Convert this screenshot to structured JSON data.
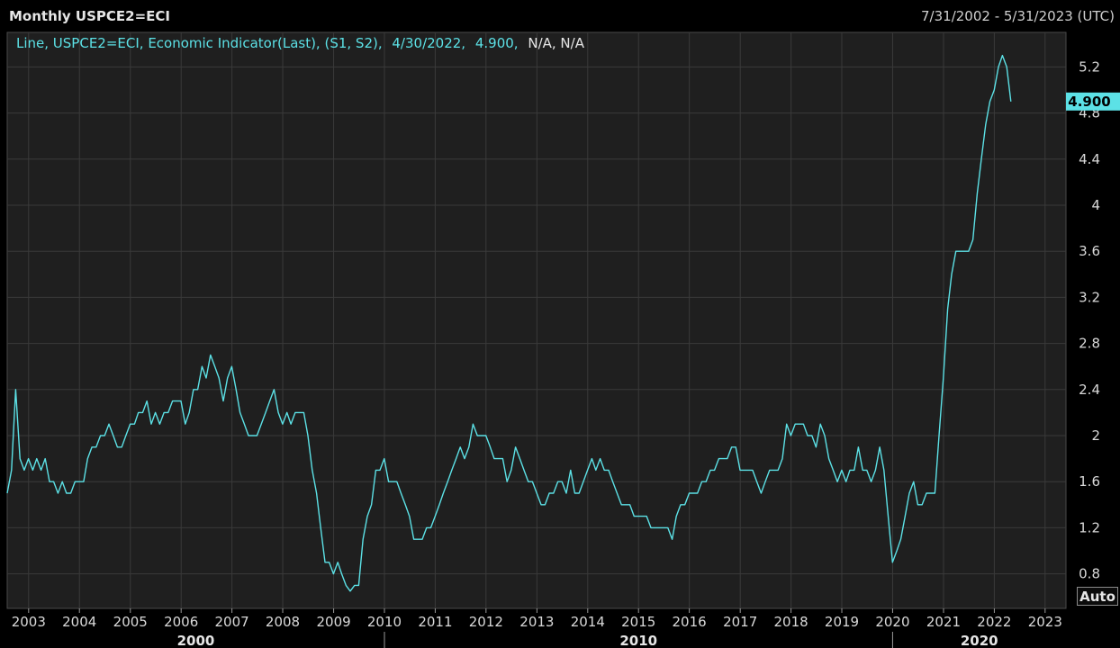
{
  "header": {
    "title": "Monthly USPCE2=ECI",
    "date_range": "7/31/2002 - 5/31/2023 (UTC)"
  },
  "legend": {
    "prefix": "Line, USPCE2=ECI, Economic Indicator(Last), (S1, S2),",
    "date": "4/30/2022,",
    "value": "4.900,",
    "na": "N/A, N/A"
  },
  "last_value_badge": "4.900",
  "auto_button": "Auto",
  "colors": {
    "series": "#5ce1e6",
    "background": "#1f1f1f",
    "grid": "#3a3a3a",
    "badge": "#5ce1e6"
  },
  "chart_data": {
    "type": "line",
    "title": "Monthly USPCE2=ECI",
    "xlabel": "",
    "ylabel": "",
    "ylim": [
      0.5,
      5.5
    ],
    "xlim": [
      "2002-07-31",
      "2023-05-31"
    ],
    "y_ticks": [
      "0.8",
      "1.2",
      "1.6",
      "2",
      "2.4",
      "2.8",
      "3.2",
      "3.6",
      "4",
      "4.4",
      "4.8",
      "5.2"
    ],
    "x_ticks": [
      "2003",
      "2004",
      "2005",
      "2006",
      "2007",
      "2008",
      "2009",
      "2010",
      "2011",
      "2012",
      "2013",
      "2014",
      "2015",
      "2016",
      "2017",
      "2018",
      "2019",
      "2020",
      "2021",
      "2022",
      "2023"
    ],
    "decade_labels": [
      "2000",
      "2010",
      "2020"
    ],
    "grid": true,
    "legend_position": "top-left",
    "series": [
      {
        "name": "USPCE2=ECI",
        "points": [
          [
            "2002-07-31",
            1.5
          ],
          [
            "2002-08-31",
            1.7
          ],
          [
            "2002-09-30",
            2.4
          ],
          [
            "2002-10-31",
            1.8
          ],
          [
            "2002-11-30",
            1.7
          ],
          [
            "2002-12-31",
            1.8
          ],
          [
            "2003-01-31",
            1.7
          ],
          [
            "2003-02-28",
            1.8
          ],
          [
            "2003-03-31",
            1.7
          ],
          [
            "2003-04-30",
            1.8
          ],
          [
            "2003-05-31",
            1.6
          ],
          [
            "2003-06-30",
            1.6
          ],
          [
            "2003-07-31",
            1.5
          ],
          [
            "2003-08-31",
            1.6
          ],
          [
            "2003-09-30",
            1.5
          ],
          [
            "2003-10-31",
            1.5
          ],
          [
            "2003-11-30",
            1.6
          ],
          [
            "2003-12-31",
            1.6
          ],
          [
            "2004-01-31",
            1.6
          ],
          [
            "2004-02-29",
            1.8
          ],
          [
            "2004-03-31",
            1.9
          ],
          [
            "2004-04-30",
            1.9
          ],
          [
            "2004-05-31",
            2.0
          ],
          [
            "2004-06-30",
            2.0
          ],
          [
            "2004-07-31",
            2.1
          ],
          [
            "2004-08-31",
            2.0
          ],
          [
            "2004-09-30",
            1.9
          ],
          [
            "2004-10-31",
            1.9
          ],
          [
            "2004-11-30",
            2.0
          ],
          [
            "2004-12-31",
            2.1
          ],
          [
            "2005-01-31",
            2.1
          ],
          [
            "2005-02-28",
            2.2
          ],
          [
            "2005-03-31",
            2.2
          ],
          [
            "2005-04-30",
            2.3
          ],
          [
            "2005-05-31",
            2.1
          ],
          [
            "2005-06-30",
            2.2
          ],
          [
            "2005-07-31",
            2.1
          ],
          [
            "2005-08-31",
            2.2
          ],
          [
            "2005-09-30",
            2.2
          ],
          [
            "2005-10-31",
            2.3
          ],
          [
            "2005-11-30",
            2.3
          ],
          [
            "2005-12-31",
            2.3
          ],
          [
            "2006-01-31",
            2.1
          ],
          [
            "2006-02-28",
            2.2
          ],
          [
            "2006-03-31",
            2.4
          ],
          [
            "2006-04-30",
            2.4
          ],
          [
            "2006-05-31",
            2.6
          ],
          [
            "2006-06-30",
            2.5
          ],
          [
            "2006-07-31",
            2.7
          ],
          [
            "2006-08-31",
            2.6
          ],
          [
            "2006-09-30",
            2.5
          ],
          [
            "2006-10-31",
            2.3
          ],
          [
            "2006-11-30",
            2.5
          ],
          [
            "2006-12-31",
            2.6
          ],
          [
            "2007-01-31",
            2.4
          ],
          [
            "2007-02-28",
            2.2
          ],
          [
            "2007-03-31",
            2.1
          ],
          [
            "2007-04-30",
            2.0
          ],
          [
            "2007-05-31",
            2.0
          ],
          [
            "2007-06-30",
            2.0
          ],
          [
            "2007-07-31",
            2.1
          ],
          [
            "2007-08-31",
            2.2
          ],
          [
            "2007-09-30",
            2.3
          ],
          [
            "2007-10-31",
            2.4
          ],
          [
            "2007-11-30",
            2.2
          ],
          [
            "2007-12-31",
            2.1
          ],
          [
            "2008-01-31",
            2.2
          ],
          [
            "2008-02-29",
            2.1
          ],
          [
            "2008-03-31",
            2.2
          ],
          [
            "2008-04-30",
            2.2
          ],
          [
            "2008-05-31",
            2.2
          ],
          [
            "2008-06-30",
            2.0
          ],
          [
            "2008-07-31",
            1.7
          ],
          [
            "2008-08-31",
            1.5
          ],
          [
            "2008-09-30",
            1.2
          ],
          [
            "2008-10-31",
            0.9
          ],
          [
            "2008-11-30",
            0.9
          ],
          [
            "2008-12-31",
            0.8
          ],
          [
            "2009-01-31",
            0.9
          ],
          [
            "2009-02-28",
            0.8
          ],
          [
            "2009-03-31",
            0.7
          ],
          [
            "2009-04-30",
            0.65
          ],
          [
            "2009-05-31",
            0.7
          ],
          [
            "2009-06-30",
            0.7
          ],
          [
            "2009-07-31",
            1.1
          ],
          [
            "2009-08-31",
            1.3
          ],
          [
            "2009-09-30",
            1.4
          ],
          [
            "2009-10-31",
            1.7
          ],
          [
            "2009-11-30",
            1.7
          ],
          [
            "2009-12-31",
            1.8
          ],
          [
            "2010-01-31",
            1.6
          ],
          [
            "2010-02-28",
            1.6
          ],
          [
            "2010-03-31",
            1.6
          ],
          [
            "2010-04-30",
            1.5
          ],
          [
            "2010-05-31",
            1.4
          ],
          [
            "2010-06-30",
            1.3
          ],
          [
            "2010-07-31",
            1.1
          ],
          [
            "2010-08-31",
            1.1
          ],
          [
            "2010-09-30",
            1.1
          ],
          [
            "2010-10-31",
            1.2
          ],
          [
            "2010-11-30",
            1.2
          ],
          [
            "2010-12-31",
            1.3
          ],
          [
            "2011-01-31",
            1.4
          ],
          [
            "2011-02-28",
            1.5
          ],
          [
            "2011-03-31",
            1.6
          ],
          [
            "2011-04-30",
            1.7
          ],
          [
            "2011-05-31",
            1.8
          ],
          [
            "2011-06-30",
            1.9
          ],
          [
            "2011-07-31",
            1.8
          ],
          [
            "2011-08-31",
            1.9
          ],
          [
            "2011-09-30",
            2.1
          ],
          [
            "2011-10-31",
            2.0
          ],
          [
            "2011-11-30",
            2.0
          ],
          [
            "2011-12-31",
            2.0
          ],
          [
            "2012-01-31",
            1.9
          ],
          [
            "2012-02-29",
            1.8
          ],
          [
            "2012-03-31",
            1.8
          ],
          [
            "2012-04-30",
            1.8
          ],
          [
            "2012-05-31",
            1.6
          ],
          [
            "2012-06-30",
            1.7
          ],
          [
            "2012-07-31",
            1.9
          ],
          [
            "2012-08-31",
            1.8
          ],
          [
            "2012-09-30",
            1.7
          ],
          [
            "2012-10-31",
            1.6
          ],
          [
            "2012-11-30",
            1.6
          ],
          [
            "2012-12-31",
            1.5
          ],
          [
            "2013-01-31",
            1.4
          ],
          [
            "2013-02-28",
            1.4
          ],
          [
            "2013-03-31",
            1.5
          ],
          [
            "2013-04-30",
            1.5
          ],
          [
            "2013-05-31",
            1.6
          ],
          [
            "2013-06-30",
            1.6
          ],
          [
            "2013-07-31",
            1.5
          ],
          [
            "2013-08-31",
            1.7
          ],
          [
            "2013-09-30",
            1.5
          ],
          [
            "2013-10-31",
            1.5
          ],
          [
            "2013-11-30",
            1.6
          ],
          [
            "2013-12-31",
            1.7
          ],
          [
            "2014-01-31",
            1.8
          ],
          [
            "2014-02-28",
            1.7
          ],
          [
            "2014-03-31",
            1.8
          ],
          [
            "2014-04-30",
            1.7
          ],
          [
            "2014-05-31",
            1.7
          ],
          [
            "2014-06-30",
            1.6
          ],
          [
            "2014-07-31",
            1.5
          ],
          [
            "2014-08-31",
            1.4
          ],
          [
            "2014-09-30",
            1.4
          ],
          [
            "2014-10-31",
            1.4
          ],
          [
            "2014-11-30",
            1.3
          ],
          [
            "2014-12-31",
            1.3
          ],
          [
            "2015-01-31",
            1.3
          ],
          [
            "2015-02-28",
            1.3
          ],
          [
            "2015-03-31",
            1.2
          ],
          [
            "2015-04-30",
            1.2
          ],
          [
            "2015-05-31",
            1.2
          ],
          [
            "2015-06-30",
            1.2
          ],
          [
            "2015-07-31",
            1.2
          ],
          [
            "2015-08-31",
            1.1
          ],
          [
            "2015-09-30",
            1.3
          ],
          [
            "2015-10-31",
            1.4
          ],
          [
            "2015-11-30",
            1.4
          ],
          [
            "2015-12-31",
            1.5
          ],
          [
            "2016-01-31",
            1.5
          ],
          [
            "2016-02-29",
            1.5
          ],
          [
            "2016-03-31",
            1.6
          ],
          [
            "2016-04-30",
            1.6
          ],
          [
            "2016-05-31",
            1.7
          ],
          [
            "2016-06-30",
            1.7
          ],
          [
            "2016-07-31",
            1.8
          ],
          [
            "2016-08-31",
            1.8
          ],
          [
            "2016-09-30",
            1.8
          ],
          [
            "2016-10-31",
            1.9
          ],
          [
            "2016-11-30",
            1.9
          ],
          [
            "2016-12-31",
            1.7
          ],
          [
            "2017-01-31",
            1.7
          ],
          [
            "2017-02-28",
            1.7
          ],
          [
            "2017-03-31",
            1.7
          ],
          [
            "2017-04-30",
            1.6
          ],
          [
            "2017-05-31",
            1.5
          ],
          [
            "2017-06-30",
            1.6
          ],
          [
            "2017-07-31",
            1.7
          ],
          [
            "2017-08-31",
            1.7
          ],
          [
            "2017-09-30",
            1.7
          ],
          [
            "2017-10-31",
            1.8
          ],
          [
            "2017-11-30",
            2.1
          ],
          [
            "2017-12-31",
            2.0
          ],
          [
            "2018-01-31",
            2.1
          ],
          [
            "2018-02-28",
            2.1
          ],
          [
            "2018-03-31",
            2.1
          ],
          [
            "2018-04-30",
            2.0
          ],
          [
            "2018-05-31",
            2.0
          ],
          [
            "2018-06-30",
            1.9
          ],
          [
            "2018-07-31",
            2.1
          ],
          [
            "2018-08-31",
            2.0
          ],
          [
            "2018-09-30",
            1.8
          ],
          [
            "2018-10-31",
            1.7
          ],
          [
            "2018-11-30",
            1.6
          ],
          [
            "2018-12-31",
            1.7
          ],
          [
            "2019-01-31",
            1.6
          ],
          [
            "2019-02-28",
            1.7
          ],
          [
            "2019-03-31",
            1.7
          ],
          [
            "2019-04-30",
            1.9
          ],
          [
            "2019-05-31",
            1.7
          ],
          [
            "2019-06-30",
            1.7
          ],
          [
            "2019-07-31",
            1.6
          ],
          [
            "2019-08-31",
            1.7
          ],
          [
            "2019-09-30",
            1.9
          ],
          [
            "2019-10-31",
            1.7
          ],
          [
            "2019-11-30",
            1.3
          ],
          [
            "2019-12-31",
            0.9
          ],
          [
            "2020-01-31",
            1.0
          ],
          [
            "2020-02-29",
            1.1
          ],
          [
            "2020-03-31",
            1.3
          ],
          [
            "2020-04-30",
            1.5
          ],
          [
            "2020-05-31",
            1.6
          ],
          [
            "2020-06-30",
            1.4
          ],
          [
            "2020-07-31",
            1.4
          ],
          [
            "2020-08-31",
            1.5
          ],
          [
            "2020-09-30",
            1.5
          ],
          [
            "2020-10-31",
            1.5
          ],
          [
            "2020-11-30",
            2.0
          ],
          [
            "2020-12-31",
            2.5
          ],
          [
            "2021-01-31",
            3.1
          ],
          [
            "2021-02-28",
            3.4
          ],
          [
            "2021-03-31",
            3.6
          ],
          [
            "2021-04-30",
            3.6
          ],
          [
            "2021-05-31",
            3.6
          ],
          [
            "2021-06-30",
            3.6
          ],
          [
            "2021-07-31",
            3.7
          ],
          [
            "2021-08-31",
            4.1
          ],
          [
            "2021-09-30",
            4.4
          ],
          [
            "2021-10-31",
            4.7
          ],
          [
            "2021-11-30",
            4.9
          ],
          [
            "2021-12-31",
            5.0
          ],
          [
            "2022-01-31",
            5.2
          ],
          [
            "2022-02-28",
            5.3
          ],
          [
            "2022-03-31",
            5.2
          ],
          [
            "2022-04-30",
            4.9
          ]
        ]
      }
    ]
  }
}
